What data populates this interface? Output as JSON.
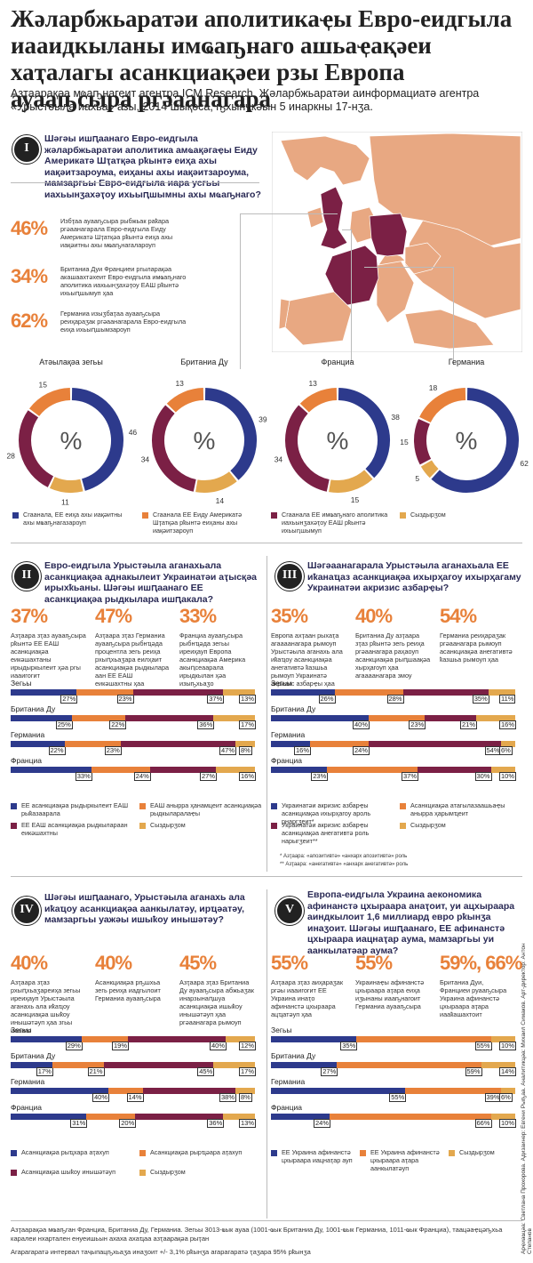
{
  "title": "Жәларбжьаратәи аполитикаҿы Евро-еидгыла иааидкыланы имҩаҧнаго ашьаҿақәеи хаҭалагы асанкциақәеи рзы Европа ауааҧсыра ргәаанагара",
  "subtitle": "Азҭаарақәа мҩаҧнагеит агентра ICM Research, Жәларбжьаратәи аинформациатә агентра «Урыстәыла иахьа» азы, 2014 шықәса, ҧхынҷкәын 5 инаркны 17-нӡа.",
  "colors": {
    "navy": "#2d3a8c",
    "orange": "#e8813a",
    "maroon": "#7b2045",
    "tan": "#e3a84e",
    "map_light": "#e8a882",
    "map_dark": "#7b2045"
  },
  "section1": {
    "num": "I",
    "question": "Шәгәы ишԥаанаго Евро-еидгыла жәларбжьаратәи аполитика амҩақәгаҿы Еиду Америкатә Шҭатқәа рҟынтә еиҳа ахы иақәитзароума, еиҳаны ахы иақәитзароума, мамзаргьы Евро-еидгыла иара усгьы иахьынӡахәҭоу ихьыԥшымны ахы мҩаҧнаго?",
    "stats": [
      {
        "pct": "46%",
        "text": "Избҭаа ауааҧсыра рыбжьак раҟара ргәаанагарала Евро-еидгыла Еиду Америкатә Шҭатқәа рҟынтә еиҳа ахы иақәитны ахы мҩаҧнагалароуп"
      },
      {
        "pct": "34%",
        "text": "Британиа Дуи Франциеи ргыларақәа акашаахтәхеит Евро-еидгыла имҩаҧнаго аполитика иахьынӡахәҭоу ЕАШ рҟынтә ихьыԥшымуп ҳаа"
      },
      {
        "pct": "62%",
        "text": "Германиа изыӡбаҭаа ауааҧсыра реиҳараӡак ргәаанагарала Евро-еидгыла еиҳа ихьыԥшымзароуп"
      }
    ],
    "map_title": ""
  },
  "donuts": {
    "labels": [
      "Атәылақәа зегьы",
      "Британиа Ду",
      "Франциа",
      "Германиа"
    ],
    "center": "%",
    "legend": [
      "Сгаанала, ЕЕ еиҳа ахы иақәитны ахы мҩаҧнагазароуп",
      "Сгаанала ЕЕ Еиду Америкатә Шҭатқәа рҟынтә еиҳаны ахы иақәитзароуп",
      "Сгаанала ЕЕ имҩаҧнаго аполитика иахьынӡахәҭоу ЕАШ рҟынтә ихьыԥшымуп",
      "Сыздырӡом"
    ]
  },
  "section2": {
    "num": "II",
    "question": "Евро-еидгыла Урыстәыла аганахьала асанкциақәа аднакылеит Украинатәи аҭысқәа ирыхҟьаны. Шәгәы ишԥаанаго ЕЕ асанкциақәа рыдкылара ишԥакала?",
    "stats": [
      {
        "pct": "37%",
        "text": "Азҭаара зҭаз ауааҧсыра рҟынтә ЕЕ ЕАШ асанкциақәа еикәшахтаны ирыдыркылеит ҳәа ргы иааигогит"
      },
      {
        "pct": "47%",
        "text": "Азҭаара зҭаз Германиа ауааҧсыра рыбнҵәда процентла зегь реиҳа рхыԥхьаӡара еилҳаит асанкциақәа рыдкылара аан ЕЕ ЕАШ еикәшахтны ҳаа агаааанагара змоу"
      },
      {
        "pct": "33%",
        "text": "Франциа ауааҧсыра рыбнҵәда зегьы иреиҳауп Европа асанкциақәа Америка акыԥсеааралa ирыдкылан ҳәа изыҧхьаӡо"
      }
    ],
    "rows": [
      "Зегьы",
      "Британиа Ду",
      "Германиа",
      "Франциа"
    ],
    "legend": [
      "ЕЕ асанкциақәа рыдыркылеит ЕАШ рыҟазаарала",
      "ЕАШ аныррa ҳанамцеит асанкциақәа рыдкыларалаҿы",
      "ЕЕ ЕАШ асанкциақәа рыдкылараан еикәшахтны",
      "Сыздырӡом"
    ]
  },
  "section3": {
    "num": "III",
    "question": "Шәгәаанагарала Урыстәыла аганахьала ЕЕ иҟанаҵаз асанкциақәа ихырҳагоу ихырҳагаму Украинатәи акризис азбарҿы?",
    "stats": [
      {
        "pct": "35%",
        "text": "Европа ахҭаан рыхаҭа агаааанагара рымоуп Урыстәыла аганахь ала иҟаҵоу асанкциақәа анегативтә ҟазшьа рымоуп Украинатә акризис азбарҿы ҳаа"
      },
      {
        "pct": "40%",
        "text": "Британиа Ду азҭаара зҭаз рҟынтә зегь реиҳа ргәаанагара раҳаоуп асанкциақәа рыԥшаақәа хырҳагоуп ҳаа агаааанагара змоу"
      },
      {
        "pct": "54%",
        "text": "Германиа реиҳараӡак ргәаанагара рымоуп асанкциақәа анегативтә ҟазшьа рымоуп ҳаа"
      }
    ],
    "rows": [
      "Зегьы",
      "Британиа Ду",
      "Германиа",
      "Франциа"
    ],
    "legend": [
      "Украинатәи акризис азбарҿы асанкциақәа ихырҳагоу ароль рнаргӡеит*",
      "Асанкциақәа атагылазаашьаҿы аныррa ҳарымҵеит",
      "Украинатәи акризис азбарҿы асанкциақәа анегативтә роль нарыгӡеит**",
      "Сыздырӡом"
    ],
    "notes": [
      "* Азҭаара: «апозитивтә» «анхарх апозитивтә» роль",
      "** Азҭаара: «анегативтә» «анхарх анегативтә» роль"
    ]
  },
  "section4": {
    "num": "IV",
    "question": "Шәгәы ишԥаанаго, Урыстәыла аганахь ала иҟаҵоу асанкциақәа аанкылатәу, ирҵәатәу, мамзаргьы уажәы ишыҟоу инышәтәу?",
    "stats": [
      {
        "pct": "40%",
        "text": "Азҭаара зҭаз рхыԥхьаӡареиҳа зегьы иреиҳауп Урыстәыла аганахь ала иҟаҵоу асанкциақәа шыҟоу инышәтәуп ҳаа згьы иааиго"
      },
      {
        "pct": "40%",
        "text": "Асанкциақәа рҧшхьа зегь реиҳа иадгылоит Германиа ауааҧсыра"
      },
      {
        "pct": "45%",
        "text": "Азҭаара зҭаз Британиа Ду ауааҧсыра абжьаӡак инарзынаԥшуа асанкциақәа ишыҟоу инышәтәуп ҳаа ргәаанагара рымоуп"
      }
    ],
    "rows": [
      "Зегьы",
      "Британиа Ду",
      "Германиа",
      "Франциа"
    ],
    "legend": [
      "Асанкциақәа рыҵхара аҭахуп",
      "Асанкциақәа рырҵәара аҭахуп",
      "Асанкциақәа шыҟоу инышәтәуп",
      "Сыздырӡом"
    ]
  },
  "section5": {
    "num": "V",
    "question": "Европа-еидгыла Украина аекономика афинанстә цхыраара анаҭоит, уи ацхыраара аиндкылоит 1,6 миллиард евро рҟынӡа инаӡоит. Шәгәы ишԥаанаго, ЕЕ афинанстә цхыраара иацнаҭар аума, мамзаргьы уи аанкылатәар аума?",
    "stats": [
      {
        "pct": "55%",
        "text": "Азҭаара зҭаз аиҳараӡак ргәы иааигогит ЕЕ Украина инаҭо афинанстә цхыраара ацҵатәуп ҳаа"
      },
      {
        "pct": "55%",
        "text": "Украинаҿы афинанстә цхыраара аҭара еиҳа иӡынаны иааҧнагоит Германиа ауааҧсыра"
      },
      {
        "pct": "59%, 66%",
        "text": "Британиа Дуи, Франциеи руааҧсыра Украина афинанстә цхыраара аҭара иааҟашахтоит"
      }
    ],
    "rows": [
      "Зегьы",
      "Британиа Ду",
      "Германиа",
      "Франциа"
    ],
    "legend": [
      "ЕЕ Украина афинанстә цхыраара иацнаҭар ауп",
      "ЕЕ Украина афинанстә цхыраара аҭара аанкылатәуп",
      "Сыздырӡом"
    ]
  },
  "footer": [
    "Азҭаарақәа мҩаҧган Франциа, Британиа Ду, Германиа. Зегьы 3013-ҩык ауаа (1001-ҩык Британиа Ду, 1001-ҩык Германиа, 1011-ҩык Франциа), таацәаҿцәҧхьа каралеи нхартален енуеишьын ахаха ахаҵаа азҭаарақәа рыҭан",
    "Агарагаратә интервал таҷыпацҧхьаӡа инаӡоит +/- 3,1% рҟынӡа агарагаратә ҭаӡара 95% рҟынӡа"
  ],
  "credits": "Арҿиаҩцәа: Светлана Прохорова. Адизаинер: Евгени Рыҧаа. Аналитикцәа: Михаил Симаков. Арт-директор: Антон Степанов",
  "chart_data": [
    {
      "type": "pie",
      "title": "Атәылақәа зегьы",
      "labels": [
        "Сгаанала, ЕЕ еиҳа ахы иақәитны ахы мҩаҧнагазароуп",
        "Сгаанала ЕЕ Еиду Америкатә Шҭатқәа рҟынтә еиҳаны ахы иақәитзароуп",
        "Сгаанала ЕЕ имҩаҧнаго аполитика иахьынӡахәҭоу ЕАШ рҟынтә ихьыԥшымуп",
        "Сыздырӡом"
      ],
      "values": [
        46,
        15,
        28,
        11
      ]
    },
    {
      "type": "pie",
      "title": "Британиа Ду",
      "labels": [
        "Сгаанала, ЕЕ еиҳа ахы иақәитны ахы мҩаҧнагазароуп",
        "Сгаанала ЕЕ Еиду Америкатә Шҭатқәа рҟынтә еиҳаны ахы иақәитзароуп",
        "Сгаанала ЕЕ имҩаҧнаго аполитика иахьынӡахәҭоу ЕАШ рҟынтә ихьыԥшымуп",
        "Сыздырӡом"
      ],
      "values": [
        39,
        13,
        34,
        14
      ]
    },
    {
      "type": "pie",
      "title": "Франциа",
      "labels": [
        "Сгаанала, ЕЕ еиҳа ахы иақәитны ахы мҩаҧнагазароуп",
        "Сгаанала ЕЕ Еиду Америкатә Шҭатқәа рҟынтә еиҳаны ахы иақәитзароуп",
        "Сгаанала ЕЕ имҩаҧнаго аполитика иахьынӡахәҭоу ЕАШ рҟынтә ихьыԥшымуп",
        "Сыздырӡом"
      ],
      "values": [
        38,
        13,
        34,
        15
      ]
    },
    {
      "type": "pie",
      "title": "Германиа",
      "labels": [
        "Сгаанала, ЕЕ еиҳа ахы иақәитны ахы мҩаҧнагазароуп",
        "Сгаанала ЕЕ Еиду Америкатә Шҭатқәа рҟынтә еиҳаны ахы иақәитзароуп",
        "Сгаанала ЕЕ имҩаҧнаго аполитика иахьынӡахәҭоу ЕАШ рҟынтә ихьыԥшымуп",
        "Сыздырӡом"
      ],
      "values": [
        62,
        18,
        15,
        5
      ]
    },
    {
      "type": "bar",
      "section": "II",
      "categories": [
        "Зегьы",
        "Британиа Ду",
        "Германиа",
        "Франциа"
      ],
      "series": [
        {
          "name": "ЕЕ асанкциақәа рыдыркылеит ЕАШ рыҟазаарала",
          "values": [
            27,
            25,
            22,
            33
          ]
        },
        {
          "name": "ЕАШ аныррa ҳанамцеит асанкциақәа рыдкыларалаҿы",
          "values": [
            23,
            22,
            23,
            24
          ]
        },
        {
          "name": "ЕЕ ЕАШ асанкциақәа рыдкылараан еикәшахтны",
          "values": [
            37,
            36,
            47,
            27
          ]
        },
        {
          "name": "Сыздырӡом",
          "values": [
            13,
            17,
            8,
            16
          ]
        }
      ]
    },
    {
      "type": "bar",
      "section": "III",
      "categories": [
        "Зегьы",
        "Британиа Ду",
        "Германиа",
        "Франциа"
      ],
      "series": [
        {
          "name": "Украинатәи акризис азбарҿы асанкциақәа ихырҳагоу ароль рнаргӡеит*",
          "values": [
            26,
            40,
            16,
            23
          ]
        },
        {
          "name": "Асанкциақәа атагылазаашьаҿы аныррa ҳарымҵеит",
          "values": [
            28,
            23,
            24,
            37
          ]
        },
        {
          "name": "Украинатәи акризис азбарҿы асанкциақәа анегативтә роль нарыгӡеит**",
          "values": [
            35,
            21,
            54,
            30
          ]
        },
        {
          "name": "Сыздырӡом",
          "values": [
            11,
            16,
            6,
            10
          ]
        }
      ]
    },
    {
      "type": "bar",
      "section": "IV",
      "categories": [
        "Зегьы",
        "Британиа Ду",
        "Германиа",
        "Франциа"
      ],
      "series": [
        {
          "name": "Асанкциақәа рыҵхара аҭахуп",
          "values": [
            29,
            17,
            40,
            31
          ]
        },
        {
          "name": "Асанкциақәа рырҵәара аҭахуп",
          "values": [
            19,
            21,
            14,
            20
          ]
        },
        {
          "name": "Асанкциақәа шыҟоу инышәтәуп",
          "values": [
            40,
            45,
            38,
            36
          ]
        },
        {
          "name": "Сыздырӡом",
          "values": [
            12,
            17,
            8,
            13
          ]
        }
      ]
    },
    {
      "type": "bar",
      "section": "V",
      "categories": [
        "Зегьы",
        "Британиа Ду",
        "Германиа",
        "Франциа"
      ],
      "series": [
        {
          "name": "ЕЕ Украина афинанстә цхыраара иацнаҭар ауп",
          "values": [
            35,
            27,
            55,
            24
          ]
        },
        {
          "name": "ЕЕ Украина афинанстә цхыраара аҭара аанкылатәуп",
          "values": [
            55,
            59,
            39,
            66
          ]
        },
        {
          "name": "Сыздырӡом",
          "values": [
            10,
            14,
            6,
            10
          ]
        }
      ]
    }
  ]
}
